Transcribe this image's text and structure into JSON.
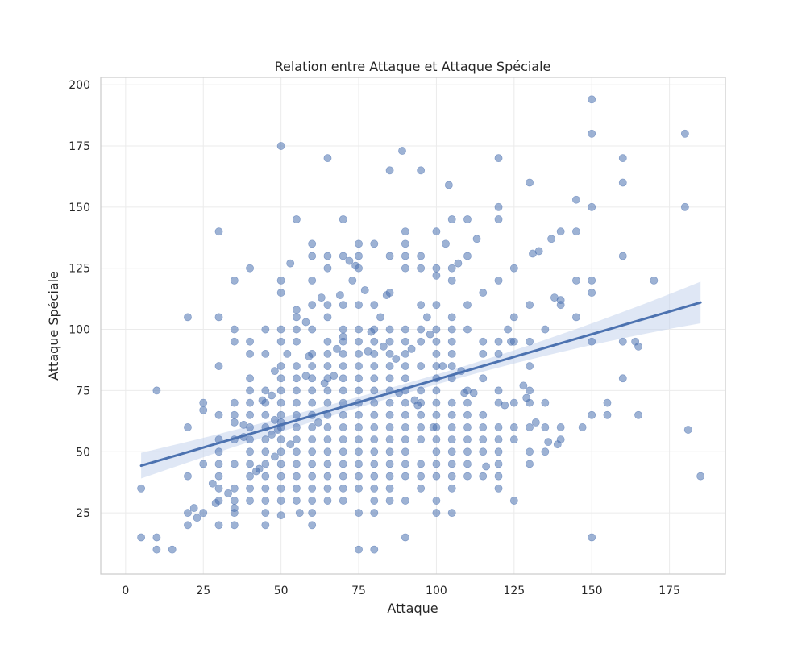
{
  "chart_data": {
    "type": "scatter",
    "title": "Relation entre Attaque et Attaque Spéciale",
    "xlabel": "Attaque",
    "ylabel": "Attaque Spéciale",
    "xlim": [
      -8,
      193
    ],
    "ylim": [
      0,
      203
    ],
    "xticks": [
      0,
      25,
      50,
      75,
      100,
      125,
      150,
      175
    ],
    "yticks": [
      25,
      50,
      75,
      100,
      125,
      150,
      175,
      200
    ],
    "grid": true,
    "colors": {
      "point": "#4c72b0",
      "line": "#4c72b0",
      "band": "#c5d3ec"
    },
    "regression": {
      "x": [
        5,
        185
      ],
      "y": [
        44.3,
        111.0
      ]
    },
    "ci_band": {
      "x": [
        5,
        185
      ],
      "upper": [
        49.5,
        119.5
      ],
      "lower": [
        39.0,
        102.5
      ]
    },
    "points": [
      [
        5,
        35
      ],
      [
        5,
        15
      ],
      [
        10,
        75
      ],
      [
        10,
        15
      ],
      [
        10,
        10
      ],
      [
        15,
        10
      ],
      [
        20,
        105
      ],
      [
        20,
        60
      ],
      [
        20,
        40
      ],
      [
        20,
        25
      ],
      [
        20,
        20
      ],
      [
        22,
        27
      ],
      [
        23,
        23
      ],
      [
        25,
        70
      ],
      [
        25,
        67
      ],
      [
        25,
        45
      ],
      [
        25,
        25
      ],
      [
        28,
        37
      ],
      [
        30,
        140
      ],
      [
        30,
        105
      ],
      [
        30,
        85
      ],
      [
        30,
        65
      ],
      [
        30,
        55
      ],
      [
        30,
        50
      ],
      [
        30,
        45
      ],
      [
        30,
        40
      ],
      [
        30,
        35
      ],
      [
        30,
        30
      ],
      [
        30,
        20
      ],
      [
        29,
        29
      ],
      [
        33,
        33
      ],
      [
        35,
        120
      ],
      [
        35,
        100
      ],
      [
        35,
        95
      ],
      [
        35,
        70
      ],
      [
        35,
        65
      ],
      [
        35,
        62
      ],
      [
        35,
        55
      ],
      [
        35,
        45
      ],
      [
        35,
        35
      ],
      [
        35,
        30
      ],
      [
        35,
        27
      ],
      [
        35,
        25
      ],
      [
        35,
        20
      ],
      [
        38,
        61
      ],
      [
        38,
        56
      ],
      [
        40,
        125
      ],
      [
        40,
        95
      ],
      [
        40,
        90
      ],
      [
        40,
        80
      ],
      [
        40,
        75
      ],
      [
        40,
        70
      ],
      [
        40,
        65
      ],
      [
        40,
        60
      ],
      [
        40,
        55
      ],
      [
        40,
        50
      ],
      [
        40,
        45
      ],
      [
        40,
        40
      ],
      [
        40,
        35
      ],
      [
        40,
        30
      ],
      [
        42,
        42
      ],
      [
        43,
        43
      ],
      [
        44,
        71
      ],
      [
        45,
        100
      ],
      [
        45,
        90
      ],
      [
        45,
        75
      ],
      [
        45,
        70
      ],
      [
        45,
        65
      ],
      [
        45,
        60
      ],
      [
        45,
        55
      ],
      [
        45,
        50
      ],
      [
        45,
        45
      ],
      [
        45,
        40
      ],
      [
        45,
        35
      ],
      [
        45,
        30
      ],
      [
        45,
        25
      ],
      [
        45,
        20
      ],
      [
        47,
        73
      ],
      [
        47,
        57
      ],
      [
        48,
        83
      ],
      [
        48,
        63
      ],
      [
        48,
        48
      ],
      [
        49,
        59
      ],
      [
        50,
        175
      ],
      [
        50,
        120
      ],
      [
        50,
        115
      ],
      [
        50,
        100
      ],
      [
        50,
        95
      ],
      [
        50,
        85
      ],
      [
        50,
        80
      ],
      [
        50,
        75
      ],
      [
        50,
        70
      ],
      [
        50,
        65
      ],
      [
        50,
        62
      ],
      [
        50,
        60
      ],
      [
        50,
        55
      ],
      [
        50,
        50
      ],
      [
        50,
        45
      ],
      [
        50,
        40
      ],
      [
        50,
        35
      ],
      [
        50,
        30
      ],
      [
        50,
        24
      ],
      [
        52,
        90
      ],
      [
        53,
        127
      ],
      [
        53,
        53
      ],
      [
        55,
        145
      ],
      [
        55,
        108
      ],
      [
        55,
        105
      ],
      [
        55,
        100
      ],
      [
        55,
        95
      ],
      [
        55,
        85
      ],
      [
        55,
        80
      ],
      [
        55,
        75
      ],
      [
        55,
        70
      ],
      [
        55,
        65
      ],
      [
        55,
        60
      ],
      [
        55,
        55
      ],
      [
        55,
        50
      ],
      [
        55,
        45
      ],
      [
        55,
        40
      ],
      [
        55,
        35
      ],
      [
        55,
        30
      ],
      [
        56,
        25
      ],
      [
        58,
        103
      ],
      [
        58,
        81
      ],
      [
        59,
        89
      ],
      [
        60,
        135
      ],
      [
        60,
        130
      ],
      [
        60,
        120
      ],
      [
        60,
        110
      ],
      [
        60,
        100
      ],
      [
        60,
        90
      ],
      [
        60,
        85
      ],
      [
        60,
        80
      ],
      [
        60,
        75
      ],
      [
        60,
        70
      ],
      [
        60,
        65
      ],
      [
        60,
        60
      ],
      [
        60,
        55
      ],
      [
        60,
        50
      ],
      [
        60,
        45
      ],
      [
        60,
        40
      ],
      [
        60,
        35
      ],
      [
        60,
        30
      ],
      [
        60,
        25
      ],
      [
        60,
        20
      ],
      [
        62,
        62
      ],
      [
        63,
        113
      ],
      [
        64,
        78
      ],
      [
        65,
        170
      ],
      [
        65,
        130
      ],
      [
        65,
        125
      ],
      [
        65,
        110
      ],
      [
        65,
        105
      ],
      [
        65,
        95
      ],
      [
        65,
        90
      ],
      [
        65,
        85
      ],
      [
        65,
        80
      ],
      [
        65,
        75
      ],
      [
        65,
        70
      ],
      [
        65,
        65
      ],
      [
        65,
        60
      ],
      [
        65,
        55
      ],
      [
        65,
        50
      ],
      [
        65,
        45
      ],
      [
        65,
        40
      ],
      [
        65,
        35
      ],
      [
        65,
        30
      ],
      [
        67,
        81
      ],
      [
        68,
        92
      ],
      [
        69,
        114
      ],
      [
        70,
        145
      ],
      [
        70,
        130
      ],
      [
        70,
        110
      ],
      [
        70,
        100
      ],
      [
        70,
        97
      ],
      [
        70,
        95
      ],
      [
        70,
        90
      ],
      [
        70,
        85
      ],
      [
        70,
        80
      ],
      [
        70,
        75
      ],
      [
        70,
        70
      ],
      [
        70,
        65
      ],
      [
        70,
        60
      ],
      [
        70,
        55
      ],
      [
        70,
        50
      ],
      [
        70,
        45
      ],
      [
        70,
        40
      ],
      [
        70,
        35
      ],
      [
        70,
        30
      ],
      [
        72,
        128
      ],
      [
        73,
        120
      ],
      [
        74,
        126
      ],
      [
        75,
        135
      ],
      [
        75,
        130
      ],
      [
        75,
        125
      ],
      [
        75,
        110
      ],
      [
        75,
        100
      ],
      [
        75,
        95
      ],
      [
        75,
        90
      ],
      [
        75,
        85
      ],
      [
        75,
        80
      ],
      [
        75,
        75
      ],
      [
        75,
        70
      ],
      [
        75,
        65
      ],
      [
        75,
        60
      ],
      [
        75,
        55
      ],
      [
        75,
        50
      ],
      [
        75,
        45
      ],
      [
        75,
        40
      ],
      [
        75,
        35
      ],
      [
        75,
        25
      ],
      [
        75,
        10
      ],
      [
        77,
        116
      ],
      [
        78,
        91
      ],
      [
        79,
        99
      ],
      [
        80,
        135
      ],
      [
        80,
        110
      ],
      [
        80,
        100
      ],
      [
        80,
        95
      ],
      [
        80,
        90
      ],
      [
        80,
        85
      ],
      [
        80,
        80
      ],
      [
        80,
        75
      ],
      [
        80,
        70
      ],
      [
        80,
        65
      ],
      [
        80,
        60
      ],
      [
        80,
        55
      ],
      [
        80,
        50
      ],
      [
        80,
        45
      ],
      [
        80,
        40
      ],
      [
        80,
        35
      ],
      [
        80,
        30
      ],
      [
        80,
        25
      ],
      [
        80,
        10
      ],
      [
        82,
        105
      ],
      [
        83,
        93
      ],
      [
        84,
        114
      ],
      [
        85,
        165
      ],
      [
        85,
        130
      ],
      [
        85,
        115
      ],
      [
        85,
        100
      ],
      [
        85,
        95
      ],
      [
        85,
        90
      ],
      [
        85,
        85
      ],
      [
        85,
        80
      ],
      [
        85,
        75
      ],
      [
        85,
        70
      ],
      [
        85,
        65
      ],
      [
        85,
        60
      ],
      [
        85,
        55
      ],
      [
        85,
        50
      ],
      [
        85,
        45
      ],
      [
        85,
        40
      ],
      [
        85,
        35
      ],
      [
        85,
        30
      ],
      [
        87,
        88
      ],
      [
        88,
        74
      ],
      [
        89,
        173
      ],
      [
        90,
        140
      ],
      [
        90,
        135
      ],
      [
        90,
        130
      ],
      [
        90,
        125
      ],
      [
        90,
        100
      ],
      [
        90,
        95
      ],
      [
        90,
        90
      ],
      [
        90,
        85
      ],
      [
        90,
        80
      ],
      [
        90,
        75
      ],
      [
        90,
        70
      ],
      [
        90,
        65
      ],
      [
        90,
        60
      ],
      [
        90,
        55
      ],
      [
        90,
        50
      ],
      [
        90,
        45
      ],
      [
        90,
        40
      ],
      [
        90,
        30
      ],
      [
        90,
        15
      ],
      [
        92,
        92
      ],
      [
        93,
        71
      ],
      [
        94,
        69
      ],
      [
        95,
        165
      ],
      [
        95,
        130
      ],
      [
        95,
        125
      ],
      [
        95,
        110
      ],
      [
        95,
        100
      ],
      [
        95,
        95
      ],
      [
        95,
        85
      ],
      [
        95,
        75
      ],
      [
        95,
        70
      ],
      [
        95,
        65
      ],
      [
        95,
        60
      ],
      [
        95,
        55
      ],
      [
        95,
        45
      ],
      [
        95,
        40
      ],
      [
        95,
        35
      ],
      [
        97,
        105
      ],
      [
        98,
        98
      ],
      [
        99,
        60
      ],
      [
        100,
        140
      ],
      [
        100,
        125
      ],
      [
        100,
        122
      ],
      [
        100,
        110
      ],
      [
        100,
        100
      ],
      [
        100,
        95
      ],
      [
        100,
        90
      ],
      [
        100,
        85
      ],
      [
        100,
        80
      ],
      [
        100,
        75
      ],
      [
        100,
        70
      ],
      [
        100,
        65
      ],
      [
        100,
        60
      ],
      [
        100,
        55
      ],
      [
        100,
        50
      ],
      [
        100,
        45
      ],
      [
        100,
        40
      ],
      [
        100,
        30
      ],
      [
        100,
        25
      ],
      [
        102,
        85
      ],
      [
        103,
        135
      ],
      [
        104,
        159
      ],
      [
        105,
        145
      ],
      [
        105,
        125
      ],
      [
        105,
        120
      ],
      [
        105,
        105
      ],
      [
        105,
        100
      ],
      [
        105,
        95
      ],
      [
        105,
        90
      ],
      [
        105,
        85
      ],
      [
        105,
        80
      ],
      [
        105,
        70
      ],
      [
        105,
        65
      ],
      [
        105,
        60
      ],
      [
        105,
        55
      ],
      [
        105,
        50
      ],
      [
        105,
        45
      ],
      [
        105,
        40
      ],
      [
        105,
        35
      ],
      [
        105,
        25
      ],
      [
        107,
        127
      ],
      [
        108,
        83
      ],
      [
        109,
        74
      ],
      [
        110,
        145
      ],
      [
        110,
        130
      ],
      [
        110,
        110
      ],
      [
        110,
        100
      ],
      [
        110,
        75
      ],
      [
        110,
        70
      ],
      [
        110,
        65
      ],
      [
        110,
        60
      ],
      [
        110,
        55
      ],
      [
        110,
        50
      ],
      [
        110,
        45
      ],
      [
        110,
        40
      ],
      [
        112,
        74
      ],
      [
        113,
        137
      ],
      [
        115,
        115
      ],
      [
        115,
        95
      ],
      [
        115,
        90
      ],
      [
        115,
        80
      ],
      [
        115,
        65
      ],
      [
        115,
        60
      ],
      [
        115,
        55
      ],
      [
        115,
        50
      ],
      [
        115,
        40
      ],
      [
        116,
        44
      ],
      [
        120,
        170
      ],
      [
        120,
        150
      ],
      [
        120,
        145
      ],
      [
        120,
        120
      ],
      [
        120,
        95
      ],
      [
        120,
        90
      ],
      [
        120,
        75
      ],
      [
        120,
        70
      ],
      [
        120,
        60
      ],
      [
        120,
        55
      ],
      [
        120,
        50
      ],
      [
        120,
        45
      ],
      [
        120,
        40
      ],
      [
        120,
        35
      ],
      [
        122,
        69
      ],
      [
        123,
        100
      ],
      [
        124,
        95
      ],
      [
        125,
        125
      ],
      [
        125,
        105
      ],
      [
        125,
        95
      ],
      [
        125,
        70
      ],
      [
        125,
        60
      ],
      [
        125,
        55
      ],
      [
        125,
        30
      ],
      [
        128,
        77
      ],
      [
        129,
        72
      ],
      [
        130,
        160
      ],
      [
        130,
        110
      ],
      [
        130,
        95
      ],
      [
        130,
        85
      ],
      [
        130,
        75
      ],
      [
        130,
        70
      ],
      [
        130,
        60
      ],
      [
        130,
        50
      ],
      [
        130,
        45
      ],
      [
        131,
        131
      ],
      [
        132,
        62
      ],
      [
        133,
        132
      ],
      [
        135,
        100
      ],
      [
        135,
        70
      ],
      [
        135,
        60
      ],
      [
        135,
        50
      ],
      [
        136,
        54
      ],
      [
        137,
        137
      ],
      [
        138,
        113
      ],
      [
        139,
        53
      ],
      [
        140,
        140
      ],
      [
        140,
        112
      ],
      [
        140,
        110
      ],
      [
        140,
        60
      ],
      [
        140,
        55
      ],
      [
        145,
        153
      ],
      [
        145,
        140
      ],
      [
        145,
        120
      ],
      [
        145,
        105
      ],
      [
        147,
        60
      ],
      [
        150,
        194
      ],
      [
        150,
        180
      ],
      [
        150,
        150
      ],
      [
        150,
        120
      ],
      [
        150,
        115
      ],
      [
        150,
        95
      ],
      [
        150,
        65
      ],
      [
        150,
        15
      ],
      [
        155,
        70
      ],
      [
        155,
        65
      ],
      [
        160,
        170
      ],
      [
        160,
        160
      ],
      [
        160,
        130
      ],
      [
        160,
        95
      ],
      [
        160,
        80
      ],
      [
        164,
        95
      ],
      [
        165,
        93
      ],
      [
        165,
        65
      ],
      [
        170,
        120
      ],
      [
        180,
        180
      ],
      [
        180,
        150
      ],
      [
        181,
        59
      ],
      [
        185,
        40
      ]
    ]
  }
}
